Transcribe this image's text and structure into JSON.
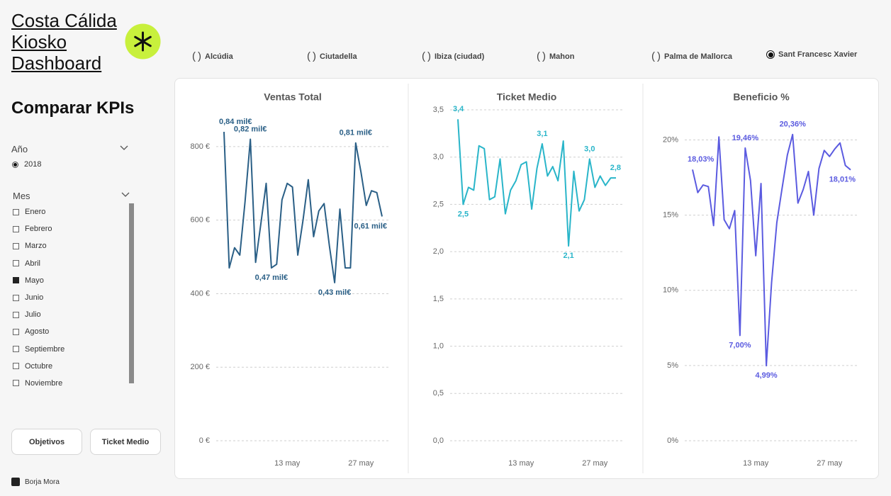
{
  "header": {
    "title": "Costa Cálida Kiosko Dashboard"
  },
  "filters": {
    "heading": "Comparar KPIs",
    "year": {
      "label": "Año",
      "options": [
        "2018"
      ],
      "selected": 0
    },
    "month": {
      "label": "Mes",
      "options": [
        "Enero",
        "Febrero",
        "Marzo",
        "Abril",
        "Mayo",
        "Junio",
        "Julio",
        "Agosto",
        "Septiembre",
        "Octubre",
        "Noviembre"
      ],
      "selected": 4
    }
  },
  "buttons": [
    "Objetivos",
    "Ticket Medio"
  ],
  "author": "Borja Mora",
  "locations": {
    "options": [
      "Alcúdia",
      "Ciutadella",
      "Ibiza (ciudad)",
      "Mahon",
      "Palma de Mallorca",
      "Sant Francesc Xavier"
    ],
    "selected": 5
  },
  "chart_data": [
    {
      "type": "line",
      "title": "Ventas Total",
      "color": "#2a5f86",
      "grid": true,
      "x": [
        1,
        2,
        3,
        4,
        5,
        6,
        7,
        8,
        9,
        10,
        11,
        12,
        13,
        14,
        15,
        16,
        17,
        18,
        19,
        20,
        21,
        22,
        23,
        24,
        25,
        26,
        27,
        28,
        29,
        30,
        31
      ],
      "values": [
        840,
        470,
        525,
        505,
        650,
        820,
        485,
        590,
        700,
        470,
        480,
        655,
        700,
        690,
        505,
        600,
        710,
        555,
        625,
        645,
        530,
        430,
        630,
        470,
        470,
        810,
        730,
        640,
        680,
        675,
        610
      ],
      "value_labels": [
        "0,84 mil€",
        null,
        null,
        null,
        null,
        "0,82 mil€",
        null,
        null,
        null,
        "0,47 mil€",
        null,
        null,
        null,
        null,
        null,
        null,
        null,
        null,
        null,
        null,
        null,
        "0,43 mil€",
        null,
        null,
        null,
        "0,81 mil€",
        null,
        null,
        null,
        null,
        "0,61 mil€"
      ],
      "xlim": [
        1,
        31
      ],
      "xticks": [
        {
          "value": 13,
          "label": "13 may"
        },
        {
          "value": 27,
          "label": "27 may"
        }
      ],
      "ylim": [
        0,
        900
      ],
      "yticks": [
        {
          "value": 0,
          "label": "0 €"
        },
        {
          "value": 200,
          "label": "200 €"
        },
        {
          "value": 400,
          "label": "400 €"
        },
        {
          "value": 600,
          "label": "600 €"
        },
        {
          "value": 800,
          "label": "800 €"
        }
      ]
    },
    {
      "type": "line",
      "title": "Ticket Medio",
      "color": "#29b5c9",
      "grid": true,
      "x": [
        1,
        2,
        3,
        4,
        5,
        6,
        7,
        8,
        9,
        10,
        11,
        12,
        13,
        14,
        15,
        16,
        17,
        18,
        19,
        20,
        21,
        22,
        23,
        24,
        25,
        26,
        27,
        28,
        29,
        30,
        31
      ],
      "values": [
        3.4,
        2.5,
        2.68,
        2.65,
        3.12,
        3.09,
        2.55,
        2.58,
        2.98,
        2.4,
        2.65,
        2.75,
        2.92,
        2.95,
        2.45,
        2.88,
        3.14,
        2.8,
        2.9,
        2.75,
        3.17,
        2.06,
        2.85,
        2.43,
        2.55,
        2.98,
        2.68,
        2.8,
        2.7,
        2.78,
        2.78
      ],
      "value_labels": [
        "3,4",
        "2,5",
        null,
        null,
        null,
        null,
        null,
        null,
        null,
        null,
        null,
        null,
        null,
        null,
        null,
        null,
        "3,1",
        null,
        null,
        null,
        null,
        "2,1",
        null,
        null,
        null,
        "3,0",
        null,
        null,
        null,
        null,
        "2,8"
      ],
      "xlim": [
        1,
        31
      ],
      "xticks": [
        {
          "value": 13,
          "label": "13 may"
        },
        {
          "value": 27,
          "label": "27 may"
        }
      ],
      "ylim": [
        0,
        3.5
      ],
      "yticks": [
        {
          "value": 0,
          "label": "0,0"
        },
        {
          "value": 0.5,
          "label": "0,5"
        },
        {
          "value": 1,
          "label": "1,0"
        },
        {
          "value": 1.5,
          "label": "1,5"
        },
        {
          "value": 2,
          "label": "2,0"
        },
        {
          "value": 2.5,
          "label": "2,5"
        },
        {
          "value": 3,
          "label": "3,0"
        },
        {
          "value": 3.5,
          "label": "3,5"
        }
      ]
    },
    {
      "type": "line",
      "title": "Beneficio %",
      "color": "#5b5be0",
      "grid": true,
      "x": [
        1,
        2,
        3,
        4,
        5,
        6,
        7,
        8,
        9,
        10,
        11,
        12,
        13,
        14,
        15,
        16,
        17,
        18,
        19,
        20,
        21,
        22,
        23,
        24,
        25,
        26,
        27,
        28,
        29,
        30,
        31
      ],
      "values": [
        18.03,
        16.5,
        17.0,
        16.9,
        14.3,
        20.2,
        14.7,
        14.1,
        15.3,
        7.0,
        19.46,
        17.3,
        12.3,
        17.1,
        4.99,
        10.5,
        14.5,
        16.8,
        19.0,
        20.36,
        15.8,
        16.7,
        17.9,
        15.0,
        18.1,
        19.3,
        18.9,
        19.4,
        19.8,
        18.3,
        18.01
      ],
      "value_labels": [
        "18,03%",
        null,
        null,
        null,
        null,
        null,
        null,
        null,
        null,
        "7,00%",
        "19,46%",
        null,
        null,
        null,
        "4,99%",
        null,
        null,
        null,
        null,
        "20,36%",
        null,
        null,
        null,
        null,
        null,
        null,
        null,
        null,
        null,
        null,
        "18,01%"
      ],
      "xlim": [
        1,
        31
      ],
      "xticks": [
        {
          "value": 13,
          "label": "13 may"
        },
        {
          "value": 27,
          "label": "27 may"
        }
      ],
      "ylim": [
        0,
        22
      ],
      "yticks": [
        {
          "value": 0,
          "label": "0%"
        },
        {
          "value": 5,
          "label": "5%"
        },
        {
          "value": 10,
          "label": "10%"
        },
        {
          "value": 15,
          "label": "15%"
        },
        {
          "value": 20,
          "label": "20%"
        }
      ]
    }
  ]
}
